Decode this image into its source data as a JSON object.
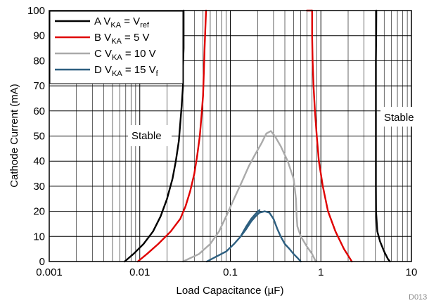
{
  "chart_data": {
    "type": "line",
    "xlabel": "Load Capacitance (µF)",
    "ylabel": "Cathode Current (mA)",
    "x_scale": "log",
    "xlim": [
      0.001,
      10
    ],
    "ylim": [
      0,
      100
    ],
    "x_ticks": [
      "0.001",
      "0.01",
      "0.1",
      "1",
      "10"
    ],
    "y_ticks": [
      "0",
      "10",
      "20",
      "30",
      "40",
      "50",
      "60",
      "70",
      "80",
      "90",
      "100"
    ],
    "grid": true,
    "legend_position": "top-left",
    "annotations": [
      "Stable",
      "Stable"
    ],
    "figure_id": "D013",
    "series": [
      {
        "legend_label": "A V",
        "legend_sub": "KA",
        "legend_eq": " = V",
        "legend_sub2": "ref",
        "legend_tail": "",
        "color": "#000000",
        "curves": [
          [
            [
              0.0068,
              0
            ],
            [
              0.0085,
              3
            ],
            [
              0.011,
              7
            ],
            [
              0.014,
              12
            ],
            [
              0.017,
              18
            ],
            [
              0.02,
              25
            ],
            [
              0.023,
              33
            ],
            [
              0.025,
              40
            ],
            [
              0.027,
              48
            ],
            [
              0.028,
              55
            ],
            [
              0.029,
              62
            ],
            [
              0.03,
              70
            ],
            [
              0.03,
              78
            ],
            [
              0.0305,
              85
            ],
            [
              0.0305,
              92
            ],
            [
              0.0305,
              100
            ]
          ],
          [
            [
              4.1,
              100
            ],
            [
              4.08,
              90
            ],
            [
              4.05,
              80
            ],
            [
              4.05,
              70
            ],
            [
              4.05,
              60
            ],
            [
              4.05,
              50
            ],
            [
              4.05,
              40
            ],
            [
              4.05,
              30
            ],
            [
              4.07,
              20
            ],
            [
              4.2,
              12
            ],
            [
              4.5,
              8
            ],
            [
              5.0,
              4
            ],
            [
              5.5,
              1
            ],
            [
              5.8,
              0
            ]
          ]
        ]
      },
      {
        "legend_label": "B V",
        "legend_sub": "KA",
        "legend_eq": " = 5 V",
        "legend_sub2": "",
        "legend_tail": "",
        "color": "#e00000",
        "curves": [
          [
            [
              0.0095,
              0
            ],
            [
              0.012,
              3
            ],
            [
              0.016,
              7
            ],
            [
              0.022,
              12
            ],
            [
              0.028,
              17
            ],
            [
              0.032,
              22
            ],
            [
              0.036,
              28
            ],
            [
              0.04,
              35
            ],
            [
              0.043,
              42
            ],
            [
              0.046,
              50
            ],
            [
              0.048,
              58
            ],
            [
              0.05,
              66
            ],
            [
              0.051,
              75
            ],
            [
              0.052,
              85
            ],
            [
              0.053,
              93
            ],
            [
              0.054,
              100
            ]
          ],
          [
            [
              0.7,
              100
            ],
            [
              0.8,
              100
            ]
          ],
          [
            [
              0.8,
              100
            ],
            [
              0.8,
              90
            ],
            [
              0.81,
              80
            ],
            [
              0.83,
              70
            ],
            [
              0.86,
              60
            ],
            [
              0.9,
              50
            ],
            [
              0.95,
              40
            ],
            [
              1.05,
              30
            ],
            [
              1.2,
              20
            ],
            [
              1.45,
              12
            ],
            [
              1.8,
              5
            ],
            [
              2.2,
              0
            ]
          ]
        ]
      },
      {
        "legend_label": "C V",
        "legend_sub": "KA",
        "legend_eq": " = 10 V",
        "legend_sub2": "",
        "legend_tail": "",
        "color": "#aaaaaa",
        "curves": [
          [
            [
              0.03,
              0
            ],
            [
              0.045,
              3
            ],
            [
              0.06,
              7
            ],
            [
              0.075,
              12
            ],
            [
              0.09,
              18
            ],
            [
              0.11,
              25
            ],
            [
              0.135,
              32
            ],
            [
              0.16,
              38
            ],
            [
              0.19,
              43
            ],
            [
              0.22,
              47
            ],
            [
              0.25,
              51
            ],
            [
              0.28,
              52
            ],
            [
              0.31,
              50
            ],
            [
              0.36,
              46
            ],
            [
              0.43,
              40
            ],
            [
              0.5,
              33
            ],
            [
              0.53,
              25
            ],
            [
              0.54,
              18
            ],
            [
              0.55,
              14
            ],
            [
              0.6,
              10
            ],
            [
              0.7,
              6
            ],
            [
              0.8,
              3
            ],
            [
              0.88,
              0
            ]
          ]
        ]
      },
      {
        "legend_label": "D V",
        "legend_sub": "KA",
        "legend_eq": " = 15 V",
        "legend_sub2": "",
        "legend_tail": "f",
        "color": "#2d5f80",
        "curves": [
          [
            [
              0.055,
              0
            ],
            [
              0.07,
              2
            ],
            [
              0.09,
              4
            ],
            [
              0.11,
              7
            ],
            [
              0.13,
              10
            ],
            [
              0.15,
              13
            ],
            [
              0.17,
              16
            ],
            [
              0.19,
              18
            ],
            [
              0.21,
              19.5
            ],
            [
              0.24,
              20
            ],
            [
              0.27,
              19.5
            ],
            [
              0.3,
              17
            ],
            [
              0.33,
              13
            ],
            [
              0.36,
              10
            ],
            [
              0.4,
              7
            ],
            [
              0.45,
              5
            ],
            [
              0.5,
              3
            ],
            [
              0.55,
              1.5
            ],
            [
              0.6,
              0
            ]
          ],
          [
            [
              0.13,
              10
            ],
            [
              0.15,
              14
            ],
            [
              0.17,
              17
            ],
            [
              0.19,
              19
            ],
            [
              0.21,
              20.5
            ]
          ]
        ]
      }
    ]
  }
}
